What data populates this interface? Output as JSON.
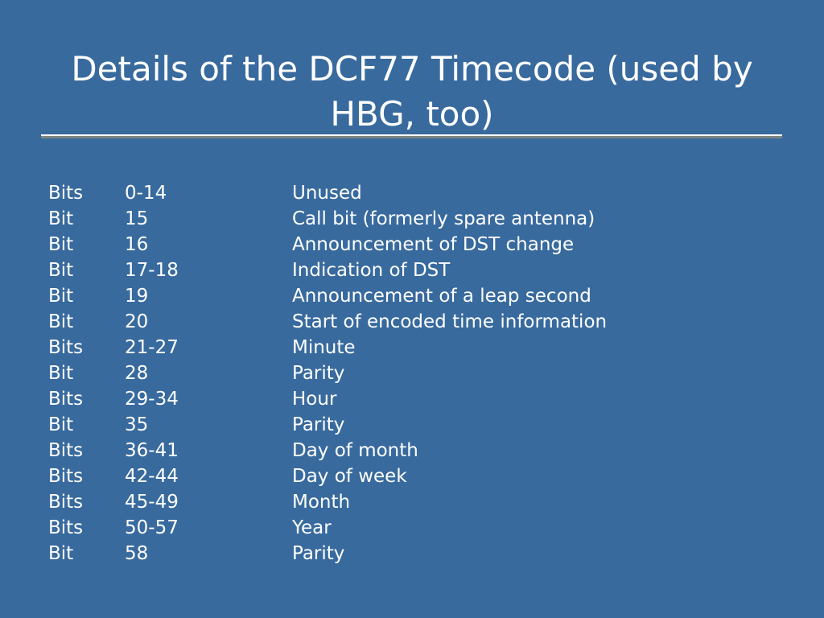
{
  "title": "Details of the DCF77 Timecode (used by HBG, too)",
  "rows": [
    [
      "Bits",
      "0-14",
      "Unused"
    ],
    [
      "Bit",
      "15",
      "Call bit (formerly spare antenna)"
    ],
    [
      "Bit",
      "16",
      "Announcement of DST change"
    ],
    [
      "Bit",
      "17-18",
      "Indication of DST"
    ],
    [
      "Bit",
      "19",
      "Announcement of a leap second"
    ],
    [
      "Bit",
      "20",
      "Start of encoded time information"
    ],
    [
      "Bits",
      "21-27",
      "Minute"
    ],
    [
      "Bit",
      "28",
      "Parity"
    ],
    [
      "Bits",
      "29-34",
      "Hour"
    ],
    [
      "Bit",
      "35",
      "Parity"
    ],
    [
      "Bits",
      "36-41",
      "Day of month"
    ],
    [
      "Bits",
      "42-44",
      "Day of week"
    ],
    [
      "Bits",
      "45-49",
      "Month"
    ],
    [
      "Bits",
      "50-57",
      "Year"
    ],
    [
      "Bit",
      "58",
      "Parity"
    ]
  ],
  "colors": {
    "background": "#386a9e",
    "text": "#ffffff"
  }
}
